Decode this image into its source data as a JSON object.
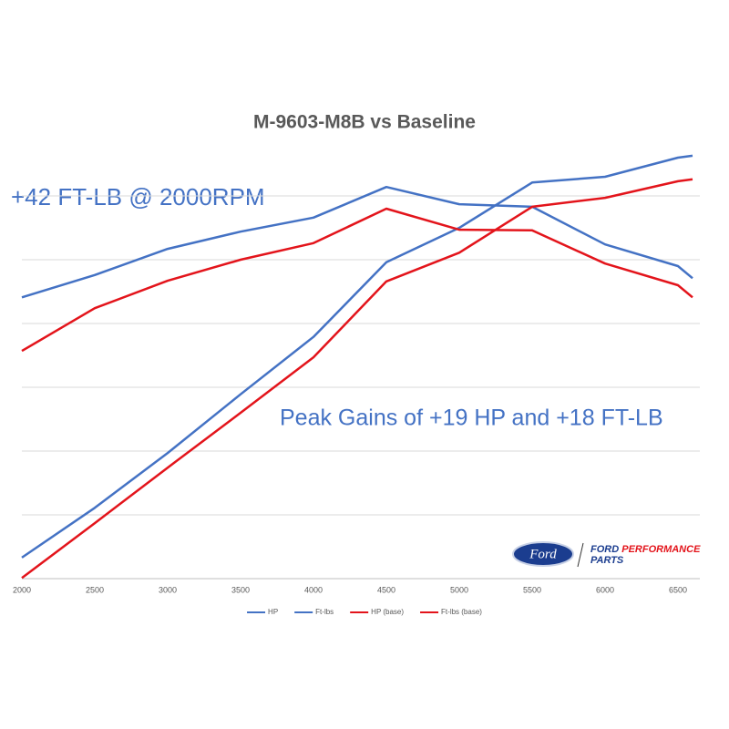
{
  "chart_data": {
    "type": "line",
    "title": "M-9603-M8B vs Baseline",
    "annotations": [
      "+42 FT-LB @ 2000RPM",
      "Peak Gains of +19 HP and +18 FT-LB"
    ],
    "logo": {
      "emblem": "Ford",
      "line1": "FORD",
      "line1_accent": "PERFORMANCE",
      "line2": "PARTS"
    },
    "x": [
      2000,
      2500,
      3000,
      3500,
      4000,
      4500,
      5000,
      5500,
      6000,
      6500,
      6600
    ],
    "xlim": [
      2000,
      6650
    ],
    "xticks": [
      2000,
      2500,
      3000,
      3500,
      4000,
      4500,
      5000,
      5500,
      6000,
      6500
    ],
    "ylim": [
      0,
      7
    ],
    "yticks": [
      0,
      1,
      2,
      3,
      4,
      5,
      6
    ],
    "grid": true,
    "legend": "bottom",
    "series": [
      {
        "name": "HP",
        "color": "#4472c4",
        "values": [
          0.33,
          1.11,
          1.97,
          2.89,
          3.79,
          4.96,
          5.5,
          6.21,
          6.3,
          6.6,
          6.63
        ]
      },
      {
        "name": "Ft-lbs",
        "color": "#4472c4",
        "values": [
          4.41,
          4.76,
          5.17,
          5.44,
          5.66,
          6.14,
          5.87,
          5.83,
          5.24,
          4.9,
          4.71
        ]
      },
      {
        "name": "HP (base)",
        "color": "#e3141b",
        "values": [
          0.01,
          0.87,
          1.74,
          2.6,
          3.47,
          4.66,
          5.11,
          5.83,
          5.97,
          6.23,
          6.26
        ]
      },
      {
        "name": "Ft-lbs (base)",
        "color": "#e3141b",
        "values": [
          3.57,
          4.24,
          4.67,
          5.0,
          5.26,
          5.8,
          5.47,
          5.46,
          4.94,
          4.6,
          4.41
        ]
      }
    ]
  }
}
